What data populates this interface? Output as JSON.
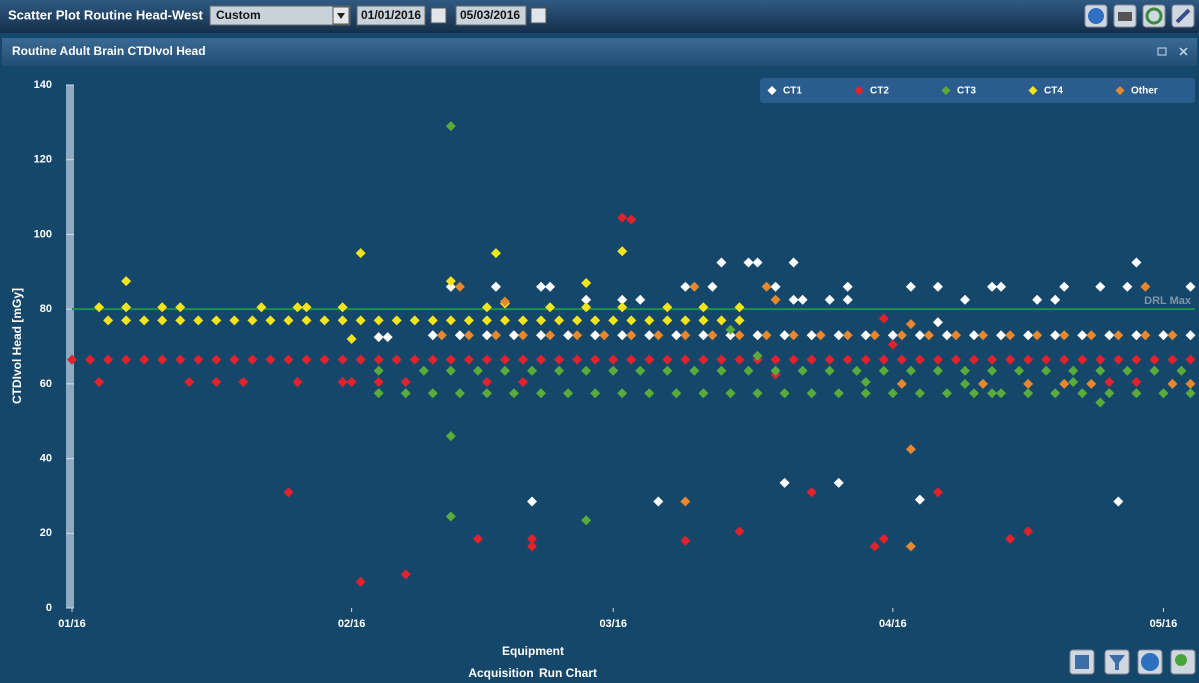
{
  "header": {
    "title": "Scatter Plot Routine Head-West",
    "period": "Custom",
    "start_date": "01/01/2016",
    "end_date": "05/03/2016"
  },
  "panel": {
    "title": "Routine Adult Brain CTDIvol Head"
  },
  "footer": {
    "group_label": "Equipment",
    "tabs": [
      "Acquisition",
      "Run Chart"
    ]
  },
  "chart_data": {
    "type": "scatter",
    "ylabel": "CTDIvol Head   [mGy]",
    "xlim": [
      0,
      124.5
    ],
    "ylim": [
      0,
      140
    ],
    "xticks": [
      {
        "value": 0,
        "label": "01/16"
      },
      {
        "value": 31,
        "label": "02/16"
      },
      {
        "value": 60,
        "label": "03/16"
      },
      {
        "value": 91,
        "label": "04/16"
      },
      {
        "value": 121,
        "label": "05/16"
      }
    ],
    "yticks": [
      0,
      20,
      40,
      60,
      80,
      100,
      120,
      140
    ],
    "grid": false,
    "legend": "upper right",
    "ref_line": {
      "value": 80,
      "label": "DRL Max",
      "color": "#1b8f4f"
    },
    "series": [
      {
        "name": "CT1",
        "color": "#ffffff",
        "x": [
          40,
          43,
          46,
          49,
          52,
          55,
          58,
          61,
          64,
          67,
          70,
          73,
          76,
          79,
          82,
          85,
          88,
          91,
          94,
          97,
          100,
          103,
          106,
          109,
          112,
          115,
          118,
          121,
          124,
          34,
          35,
          42,
          47,
          51,
          52,
          53,
          57,
          61,
          63,
          65,
          68,
          71,
          72,
          75,
          76,
          78,
          79,
          80,
          80,
          81,
          84,
          85,
          86,
          86,
          93,
          94,
          96,
          96,
          99,
          102,
          103,
          107,
          109,
          110,
          114,
          116,
          117,
          118,
          124
        ],
        "values": [
          73,
          73,
          73,
          73,
          73,
          73,
          73,
          73,
          73,
          73,
          73,
          73,
          73,
          73,
          73,
          73,
          73,
          73,
          73,
          73,
          73,
          73,
          73,
          73,
          73,
          73,
          73,
          73,
          73,
          72.5,
          72.5,
          86,
          86,
          28.5,
          86,
          86,
          82.5,
          82.5,
          82.5,
          28.5,
          86,
          86,
          92.5,
          92.5,
          92.5,
          86,
          33.5,
          92.5,
          82.5,
          82.5,
          82.5,
          33.5,
          86,
          82.5,
          86,
          29,
          76.5,
          86,
          82.5,
          86,
          86,
          82.5,
          82.5,
          86,
          86,
          28.5,
          86,
          92.5,
          86
        ]
      },
      {
        "name": "CT2",
        "color": "#e3222b",
        "x": [
          0,
          2,
          4,
          6,
          8,
          10,
          12,
          14,
          16,
          18,
          20,
          22,
          24,
          26,
          28,
          30,
          32,
          34,
          36,
          38,
          40,
          42,
          44,
          46,
          48,
          50,
          52,
          54,
          56,
          58,
          60,
          62,
          64,
          66,
          68,
          70,
          72,
          74,
          76,
          78,
          80,
          82,
          84,
          86,
          88,
          90,
          92,
          94,
          96,
          98,
          100,
          102,
          104,
          106,
          108,
          110,
          112,
          114,
          116,
          118,
          120,
          122,
          124,
          3,
          13,
          16,
          19,
          24,
          25,
          30,
          31,
          32,
          34,
          37,
          37,
          45,
          46,
          50,
          51,
          51,
          61,
          62,
          68,
          74,
          78,
          82,
          89,
          90,
          90,
          91,
          96,
          104,
          106,
          115,
          118
        ],
        "values": [
          66.5,
          66.5,
          66.5,
          66.5,
          66.5,
          66.5,
          66.5,
          66.5,
          66.5,
          66.5,
          66.5,
          66.5,
          66.5,
          66.5,
          66.5,
          66.5,
          66.5,
          66.5,
          66.5,
          66.5,
          66.5,
          66.5,
          66.5,
          66.5,
          66.5,
          66.5,
          66.5,
          66.5,
          66.5,
          66.5,
          66.5,
          66.5,
          66.5,
          66.5,
          66.5,
          66.5,
          66.5,
          66.5,
          66.5,
          66.5,
          66.5,
          66.5,
          66.5,
          66.5,
          66.5,
          66.5,
          66.5,
          66.5,
          66.5,
          66.5,
          66.5,
          66.5,
          66.5,
          66.5,
          66.5,
          66.5,
          66.5,
          66.5,
          66.5,
          66.5,
          66.5,
          66.5,
          66.5,
          60.5,
          60.5,
          60.5,
          60.5,
          31,
          60.5,
          60.5,
          60.5,
          7,
          60.5,
          9,
          60.5,
          18.5,
          60.5,
          60.5,
          16.5,
          18.5,
          104.5,
          104,
          18,
          20.5,
          62.5,
          31,
          16.5,
          18.5,
          77.5,
          70.5,
          31,
          18.5,
          20.5,
          60.5,
          60.5
        ]
      },
      {
        "name": "CT3",
        "color": "#5bab3b",
        "x": [
          39,
          42,
          45,
          48,
          51,
          54,
          57,
          60,
          63,
          66,
          69,
          72,
          75,
          78,
          81,
          84,
          87,
          90,
          93,
          96,
          99,
          102,
          105,
          108,
          111,
          114,
          117,
          120,
          123,
          40,
          43,
          46,
          49,
          52,
          55,
          58,
          61,
          64,
          67,
          70,
          73,
          76,
          79,
          82,
          85,
          88,
          91,
          94,
          97,
          100,
          103,
          106,
          109,
          112,
          115,
          118,
          121,
          124,
          34,
          34,
          37,
          42,
          42,
          42,
          57,
          73,
          76,
          88,
          99,
          102,
          111,
          114
        ],
        "values": [
          63.5,
          63.5,
          63.5,
          63.5,
          63.5,
          63.5,
          63.5,
          63.5,
          63.5,
          63.5,
          63.5,
          63.5,
          63.5,
          63.5,
          63.5,
          63.5,
          63.5,
          63.5,
          63.5,
          63.5,
          63.5,
          63.5,
          63.5,
          63.5,
          63.5,
          63.5,
          63.5,
          63.5,
          63.5,
          57.5,
          57.5,
          57.5,
          57.5,
          57.5,
          57.5,
          57.5,
          57.5,
          57.5,
          57.5,
          57.5,
          57.5,
          57.5,
          57.5,
          57.5,
          57.5,
          57.5,
          57.5,
          57.5,
          57.5,
          57.5,
          57.5,
          57.5,
          57.5,
          57.5,
          57.5,
          57.5,
          57.5,
          57.5,
          63.5,
          57.5,
          57.5,
          129,
          46,
          24.5,
          23.5,
          74.5,
          67.5,
          60.5,
          60,
          57.5,
          60.5,
          55
        ]
      },
      {
        "name": "CT4",
        "color": "#f4e41c",
        "x": [
          4,
          6,
          8,
          10,
          12,
          14,
          16,
          18,
          20,
          22,
          24,
          26,
          28,
          30,
          32,
          34,
          36,
          38,
          40,
          42,
          44,
          46,
          48,
          50,
          52,
          54,
          56,
          58,
          60,
          62,
          64,
          66,
          68,
          70,
          72,
          74,
          3,
          6,
          6,
          10,
          12,
          21,
          25,
          26,
          30,
          32,
          31,
          47,
          42,
          46,
          48,
          53,
          57,
          57,
          61,
          61,
          66,
          70,
          74
        ],
        "values": [
          77,
          77,
          77,
          77,
          77,
          77,
          77,
          77,
          77,
          77,
          77,
          77,
          77,
          77,
          77,
          77,
          77,
          77,
          77,
          77,
          77,
          77,
          77,
          77,
          77,
          77,
          77,
          77,
          77,
          77,
          77,
          77,
          77,
          77,
          77,
          77,
          80.5,
          87.5,
          80.5,
          80.5,
          80.5,
          80.5,
          80.5,
          80.5,
          80.5,
          95,
          72,
          95,
          87.5,
          80.5,
          81.5,
          80.5,
          87,
          80.5,
          95.5,
          80.5,
          80.5,
          80.5,
          80.5
        ]
      },
      {
        "name": "Other",
        "color": "#e8872b",
        "x": [
          41,
          44,
          47,
          50,
          53,
          56,
          59,
          62,
          65,
          68,
          71,
          74,
          77,
          80,
          83,
          86,
          89,
          92,
          95,
          98,
          101,
          104,
          107,
          110,
          113,
          116,
          119,
          122,
          43,
          48,
          68,
          69,
          77,
          78,
          92,
          93,
          93,
          93,
          101,
          106,
          110,
          113,
          119,
          122,
          124
        ],
        "values": [
          73,
          73,
          73,
          73,
          73,
          73,
          73,
          73,
          73,
          73,
          73,
          73,
          73,
          73,
          73,
          73,
          73,
          73,
          73,
          73,
          73,
          73,
          73,
          73,
          73,
          73,
          73,
          73,
          86,
          82,
          28.5,
          86,
          86,
          82.5,
          60,
          76,
          42.5,
          16.5,
          60,
          60,
          60,
          60,
          86,
          60,
          60
        ]
      }
    ]
  }
}
